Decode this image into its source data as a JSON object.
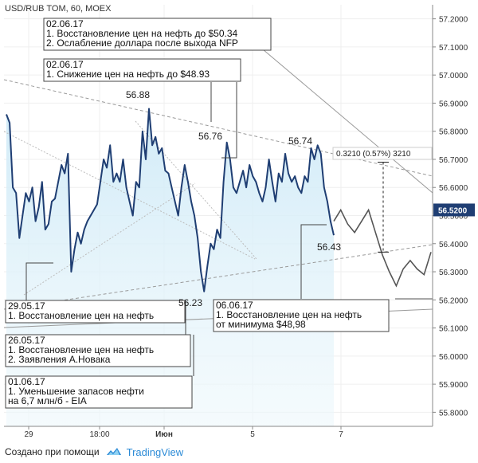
{
  "chart_data": {
    "type": "line",
    "title": "USD/RUB TOM, 60, MOEX",
    "ylim": [
      55.75,
      57.25
    ],
    "y_ticks": [
      "57.2000",
      "57.1000",
      "57.0000",
      "56.9000",
      "56.8000",
      "56.7000",
      "56.6000",
      "56.5000",
      "56.4000",
      "56.3000",
      "56.2000",
      "56.1000",
      "56.0000",
      "55.9000",
      "55.8000"
    ],
    "x_ticks": [
      {
        "label": "29",
        "bold": false
      },
      {
        "label": "18:00",
        "bold": false
      },
      {
        "label": "Июн",
        "bold": true
      },
      {
        "label": "5",
        "bold": false
      },
      {
        "label": "7",
        "bold": false
      }
    ],
    "last_price": "56.5200",
    "series": [
      {
        "values": [
          56.86,
          56.83,
          56.6,
          56.58,
          56.42,
          56.5,
          56.58,
          56.55,
          56.6,
          56.48,
          56.53,
          56.62,
          56.45,
          56.47,
          56.55,
          56.56,
          56.62,
          56.68,
          56.65,
          56.72,
          56.3,
          56.38,
          56.44,
          56.4,
          56.45,
          56.48,
          56.5,
          56.52,
          56.54,
          56.62,
          56.7,
          56.67,
          56.75,
          56.62,
          56.65,
          56.62,
          56.7,
          56.6,
          56.55,
          56.5,
          56.62,
          56.6,
          56.8,
          56.7,
          56.88,
          56.75,
          56.78,
          56.72,
          56.74,
          56.66,
          56.65,
          56.6,
          56.55,
          56.5,
          56.6,
          56.68,
          56.62,
          56.55,
          56.5,
          56.42,
          56.3,
          56.23,
          56.32,
          56.4,
          56.38,
          56.45,
          56.42,
          56.62,
          56.76,
          56.7,
          56.6,
          56.58,
          56.62,
          56.66,
          56.6,
          56.68,
          56.64,
          56.62,
          56.58,
          56.55,
          56.6,
          56.7,
          56.62,
          56.55,
          56.65,
          56.62,
          56.72,
          56.65,
          56.62,
          56.64,
          56.6,
          56.58,
          56.64,
          56.62,
          56.74,
          56.7,
          56.75,
          56.72,
          56.6,
          56.55,
          56.48,
          56.43
        ]
      },
      {
        "values": [
          56.48,
          56.52,
          56.47,
          56.44,
          56.48,
          56.52,
          56.44,
          56.36,
          56.3,
          56.25,
          56.31,
          56.34,
          56.31,
          56.29,
          56.37
        ]
      }
    ],
    "peak_labels": [
      "56.88",
      "56.76",
      "56.74",
      "56.23",
      "56.43"
    ],
    "measure_label": "0.3210 (0.57%) 3210",
    "annotations": [
      {
        "date": "02.06.17",
        "lines": [
          "1. Восстановление цен на нефть до $50.34",
          "2. Ослабление доллара после выхода NFP"
        ]
      },
      {
        "date": "02.06.17",
        "lines": [
          "1. Снижение цен на нефть до $48.93"
        ]
      },
      {
        "date": "29.05.17",
        "lines": [
          "1. Восстановление цен на нефть"
        ]
      },
      {
        "date": "26.05.17",
        "lines": [
          "1. Восстановление цен на нефть",
          "2. Заявления А.Новака"
        ]
      },
      {
        "date": "01.06.17",
        "lines": [
          "1. Уменьшение запасов нефти",
          "на 6,7 млн/б - EIA"
        ]
      },
      {
        "date": "06.06.17",
        "lines": [
          "1. Восстановление цен на нефть",
          "от минимума $48,98"
        ]
      }
    ]
  },
  "footer": {
    "prefix": "Создано при помощи",
    "brand": "TradingView"
  },
  "colors": {
    "price_line": "#1f3e73",
    "area_fill": "#e3f3fb",
    "forecast_line": "#555555",
    "trend_line": "#9a9a9a",
    "last_price_bg": "#1f3e73",
    "brand": "#2b8ad6"
  }
}
